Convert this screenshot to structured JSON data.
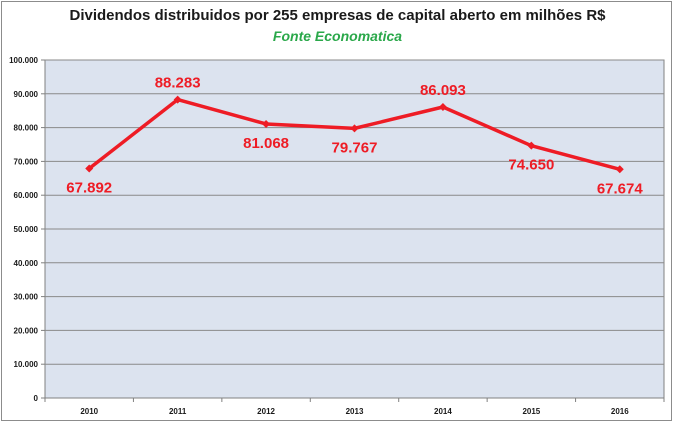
{
  "chart_data": {
    "type": "line",
    "title": "Dividendos distribuidos por 255 empresas de capital aberto em milhões R$",
    "subtitle": "Fonte Economatica",
    "categories": [
      "2010",
      "2011",
      "2012",
      "2013",
      "2014",
      "2015",
      "2016"
    ],
    "values": [
      67892,
      88283,
      81068,
      79767,
      86093,
      74650,
      67674
    ],
    "data_labels": [
      "67.892",
      "88.283",
      "81.068",
      "79.767",
      "86.093",
      "74.650",
      "67.674"
    ],
    "data_label_positions": [
      "below",
      "above",
      "below",
      "below",
      "above",
      "below",
      "below"
    ],
    "ylim": [
      0,
      100000
    ],
    "ytick_values": [
      0,
      10000,
      20000,
      30000,
      40000,
      50000,
      60000,
      70000,
      80000,
      90000,
      100000
    ],
    "ytick_labels": [
      "0",
      "10.000",
      "20.000",
      "30.000",
      "40.000",
      "50.000",
      "60.000",
      "70.000",
      "80.000",
      "90.000",
      "100.000"
    ],
    "xlabel": "",
    "ylabel": "",
    "grid": true,
    "legend": false,
    "colors": {
      "line": "#ee1c25",
      "labels": "#ee1c25",
      "plot_background": "#dce3ef",
      "grid": "#8a8a8a",
      "subtitle": "#2aa84a"
    }
  }
}
